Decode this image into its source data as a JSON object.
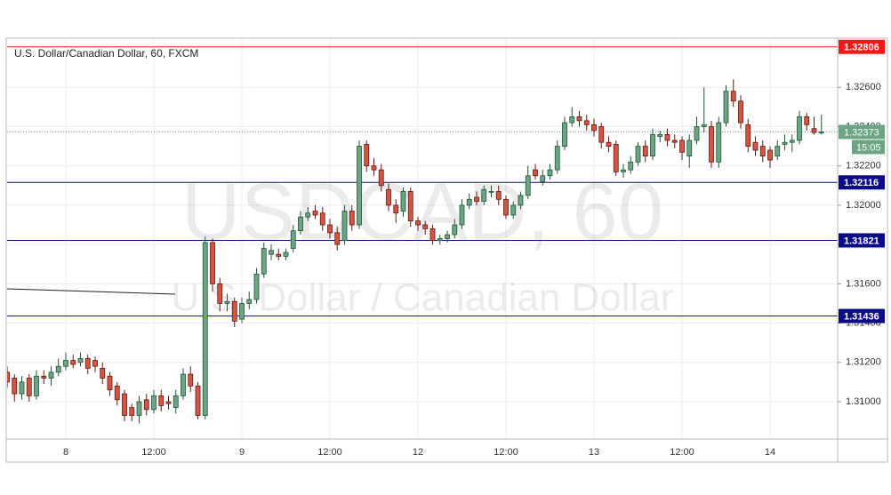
{
  "chart_data": {
    "type": "candlestick",
    "title": "U.S. Dollar/Canadian Dollar, 60, FXCM",
    "watermark": [
      "USDCAD, 60",
      "U.S. Dollar / Canadian Dollar"
    ],
    "categories": [
      null,
      null,
      null,
      null,
      null,
      null,
      null,
      null,
      "8",
      null,
      null,
      null,
      null,
      null,
      null,
      null,
      null,
      null,
      null,
      null,
      "12:00",
      null,
      null,
      null,
      null,
      null,
      null,
      null,
      null,
      null,
      null,
      null,
      "9",
      null,
      null,
      null,
      null,
      null,
      null,
      null,
      null,
      null,
      null,
      null,
      "12:00",
      null,
      null,
      null,
      null,
      null,
      null,
      null,
      null,
      null,
      null,
      null,
      "12",
      null,
      null,
      null,
      null,
      null,
      null,
      null,
      null,
      null,
      null,
      null,
      "12:00",
      null,
      null,
      null,
      null,
      null,
      null,
      null,
      null,
      null,
      null,
      null,
      "13",
      null,
      null,
      null,
      null,
      null,
      null,
      null,
      null,
      null,
      null,
      null,
      "12:00",
      null,
      null,
      null,
      null,
      null,
      null,
      null,
      null,
      null,
      null,
      null,
      "14",
      null,
      null,
      null,
      null,
      null,
      null,
      null
    ],
    "open": [
      1.3115,
      1.3112,
      1.3104,
      1.3112,
      1.3103,
      1.3113,
      1.3112,
      1.3115,
      1.3118,
      1.3121,
      1.312,
      1.3122,
      1.3121,
      1.3117,
      1.3113,
      1.3108,
      1.3104,
      1.3097,
      1.3093,
      1.3101,
      1.3096,
      1.3103,
      1.31,
      1.3097,
      1.3103,
      1.3114,
      1.3108,
      1.3093,
      1.3181,
      1.316,
      1.315,
      1.3151,
      1.3142,
      1.315,
      1.3152,
      1.3165,
      1.3175,
      1.3175,
      1.3174,
      1.3178,
      1.3187,
      1.3194,
      1.3197,
      1.3196,
      1.319,
      1.3186,
      1.3182,
      1.3197,
      1.319,
      1.3231,
      1.322,
      1.3218,
      1.3208,
      1.32,
      1.3197,
      1.3207,
      1.3192,
      1.319,
      1.3188,
      1.3182,
      1.3183,
      1.3185,
      1.319,
      1.32,
      1.3204,
      1.3202,
      1.3207,
      1.3207,
      1.3203,
      1.3195,
      1.32,
      1.3205,
      1.3218,
      1.3212,
      1.3215,
      1.3218,
      1.323,
      1.3242,
      1.3245,
      1.3243,
      1.3241,
      1.324,
      1.3232,
      1.3231,
      1.3217,
      1.3218,
      1.3222,
      1.323,
      1.3225,
      1.3235,
      1.3236,
      1.3233,
      1.3233,
      1.3225,
      1.3233,
      1.324,
      1.324,
      1.3222,
      1.3242,
      1.3258,
      1.3253,
      1.3241,
      1.3232,
      1.323,
      1.3228,
      1.3225,
      1.3231,
      1.3232,
      1.3233,
      1.3245,
      1.3239,
      1.3237
    ],
    "high": [
      1.3118,
      1.3114,
      1.3113,
      1.3114,
      1.3116,
      1.3116,
      1.3118,
      1.3122,
      1.3125,
      1.3124,
      1.3125,
      1.3124,
      1.3123,
      1.312,
      1.3115,
      1.311,
      1.3106,
      1.3099,
      1.3103,
      1.3104,
      1.3106,
      1.3106,
      1.3103,
      1.3106,
      1.3117,
      1.3118,
      1.311,
      1.3184,
      1.3183,
      1.3163,
      1.3155,
      1.3153,
      1.3153,
      1.3156,
      1.3168,
      1.3181,
      1.318,
      1.3178,
      1.3178,
      1.319,
      1.3197,
      1.3199,
      1.32,
      1.3199,
      1.3193,
      1.3189,
      1.32,
      1.32,
      1.3233,
      1.3233,
      1.3224,
      1.3221,
      1.3211,
      1.3203,
      1.3209,
      1.3209,
      1.3194,
      1.3192,
      1.319,
      1.3185,
      1.3187,
      1.3193,
      1.3203,
      1.3206,
      1.3207,
      1.321,
      1.321,
      1.321,
      1.3205,
      1.3202,
      1.3207,
      1.322,
      1.3221,
      1.3218,
      1.3221,
      1.3233,
      1.3245,
      1.325,
      1.3248,
      1.3246,
      1.3244,
      1.3242,
      1.3235,
      1.3233,
      1.3221,
      1.3225,
      1.3232,
      1.3233,
      1.3239,
      1.3238,
      1.3239,
      1.3236,
      1.3235,
      1.3236,
      1.3245,
      1.326,
      1.3243,
      1.3245,
      1.3261,
      1.3264,
      1.3256,
      1.3244,
      1.3235,
      1.3233,
      1.323,
      1.3233,
      1.3236,
      1.3236,
      1.3248,
      1.3247,
      1.3245,
      1.3246
    ],
    "low": [
      1.3107,
      1.31,
      1.3101,
      1.31,
      1.3101,
      1.3109,
      1.3108,
      1.3113,
      1.3116,
      1.3117,
      1.3118,
      1.3114,
      1.3115,
      1.3109,
      1.3103,
      1.3098,
      1.309,
      1.309,
      1.3089,
      1.3093,
      1.3094,
      1.3095,
      1.3096,
      1.3094,
      1.3101,
      1.3105,
      1.3091,
      1.3091,
      1.3156,
      1.3146,
      1.3146,
      1.3138,
      1.314,
      1.3147,
      1.315,
      1.3163,
      1.3172,
      1.3172,
      1.3172,
      1.3176,
      1.3185,
      1.3192,
      1.3193,
      1.3187,
      1.3183,
      1.3177,
      1.318,
      1.3187,
      1.3188,
      1.3217,
      1.3215,
      1.3207,
      1.3197,
      1.3191,
      1.3194,
      1.3189,
      1.3187,
      1.3185,
      1.318,
      1.318,
      1.3181,
      1.3183,
      1.3188,
      1.3198,
      1.32,
      1.32,
      1.3204,
      1.32,
      1.3193,
      1.3193,
      1.3198,
      1.3203,
      1.3213,
      1.321,
      1.3213,
      1.3216,
      1.3228,
      1.324,
      1.324,
      1.3238,
      1.3235,
      1.3229,
      1.3227,
      1.3215,
      1.3214,
      1.3216,
      1.322,
      1.3222,
      1.3223,
      1.3232,
      1.323,
      1.3229,
      1.3223,
      1.3219,
      1.3231,
      1.3237,
      1.3219,
      1.3219,
      1.324,
      1.325,
      1.3239,
      1.3227,
      1.3225,
      1.3222,
      1.3219,
      1.3223,
      1.3228,
      1.3227,
      1.3231,
      1.3238,
      1.3236,
      1.3236
    ],
    "close": [
      1.311,
      1.3104,
      1.311,
      1.3103,
      1.3113,
      1.3112,
      1.3115,
      1.3118,
      1.3121,
      1.3119,
      1.3122,
      1.3117,
      1.3118,
      1.3112,
      1.3106,
      1.3101,
      1.3093,
      1.3093,
      1.31,
      1.3096,
      1.3103,
      1.3098,
      1.3099,
      1.3103,
      1.3114,
      1.3108,
      1.3093,
      1.3181,
      1.316,
      1.315,
      1.3151,
      1.3141,
      1.315,
      1.3152,
      1.3165,
      1.3178,
      1.3177,
      1.3174,
      1.3176,
      1.3187,
      1.3194,
      1.3196,
      1.3195,
      1.319,
      1.3186,
      1.318,
      1.3197,
      1.319,
      1.323,
      1.322,
      1.3218,
      1.321,
      1.32,
      1.3196,
      1.3207,
      1.3192,
      1.319,
      1.3188,
      1.3182,
      1.3183,
      1.3185,
      1.319,
      1.32,
      1.3203,
      1.3202,
      1.3208,
      1.3207,
      1.3203,
      1.3195,
      1.32,
      1.3205,
      1.3215,
      1.3215,
      1.3215,
      1.3218,
      1.323,
      1.3242,
      1.3245,
      1.3243,
      1.3241,
      1.3238,
      1.3232,
      1.323,
      1.3217,
      1.3218,
      1.3222,
      1.323,
      1.3225,
      1.3236,
      1.3236,
      1.3233,
      1.3232,
      1.3227,
      1.3233,
      1.324,
      1.3241,
      1.3222,
      1.3242,
      1.3258,
      1.3253,
      1.3242,
      1.323,
      1.3228,
      1.3225,
      1.3223,
      1.323,
      1.3232,
      1.3233,
      1.3245,
      1.3241,
      1.3237,
      1.32373
    ],
    "up_color": "#6ba583",
    "down_color": "#d75442",
    "ylim": [
      1.3081,
      1.3285
    ],
    "yticks": [
      {
        "value": 1.31,
        "label": "1.31000"
      },
      {
        "value": 1.312,
        "label": "1.31200"
      },
      {
        "value": 1.314,
        "label": "1.31400"
      },
      {
        "value": 1.316,
        "label": "1.31600"
      },
      {
        "value": 1.318,
        "label": "1.31800"
      },
      {
        "value": 1.32,
        "label": "1.32000"
      },
      {
        "value": 1.322,
        "label": "1.32200"
      },
      {
        "value": 1.324,
        "label": "1.32400"
      },
      {
        "value": 1.326,
        "label": "1.32600"
      }
    ],
    "grid": true,
    "levels": [
      {
        "value": 1.32806,
        "color": "#f21818"
      },
      {
        "value": 1.32116,
        "color": "#0a0a86"
      },
      {
        "value": 1.31821,
        "color": "#0a0a86"
      },
      {
        "value": 1.31436,
        "color": "#0a0a86"
      }
    ],
    "current_price": {
      "value": 1.32373,
      "countdown": "15:05",
      "color": "#6ba583"
    }
  }
}
